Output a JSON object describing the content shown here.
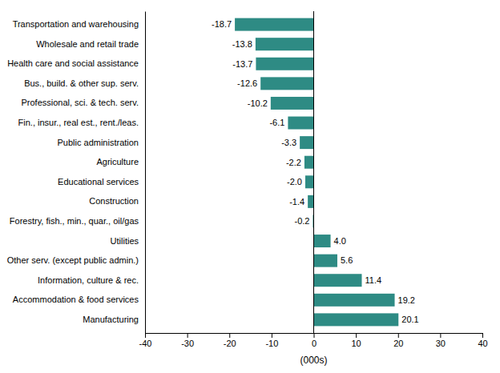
{
  "chart_data": {
    "type": "bar",
    "orientation": "horizontal",
    "categories": [
      "Manufacturing",
      "Accommodation & food services",
      "Information, culture & rec.",
      "Other serv. (except public admin.)",
      "Utilities",
      "Forestry, fish., min., quar., oil/gas",
      "Construction",
      "Educational services",
      "Agriculture",
      "Public administration",
      "Fin., insur., real est., rent./leas.",
      "Professional, sci. & tech. serv.",
      "Bus., build. & other sup. serv.",
      "Health care and social assistance",
      "Wholesale and retail trade",
      "Transportation and warehousing"
    ],
    "values": [
      20.1,
      19.2,
      11.4,
      5.6,
      4.0,
      -0.2,
      -1.4,
      -2.0,
      -2.2,
      -3.3,
      -6.1,
      -10.2,
      -12.6,
      -13.7,
      -13.8,
      -18.7
    ],
    "value_labels": [
      "20.1",
      "19.2",
      "11.4",
      "5.6",
      "4.0",
      "-0.2",
      "-1.4",
      "-2.0",
      "-2.2",
      "-3.3",
      "-6.1",
      "-10.2",
      "-12.6",
      "-13.7",
      "-13.8",
      "-18.7"
    ],
    "data_labels": true,
    "color": "#2e8b84",
    "xlabel": "(000s)",
    "xlim": [
      -40,
      40
    ],
    "xticks": [
      -40,
      -30,
      -20,
      -10,
      0,
      10,
      20,
      30,
      40
    ],
    "grid": false
  }
}
